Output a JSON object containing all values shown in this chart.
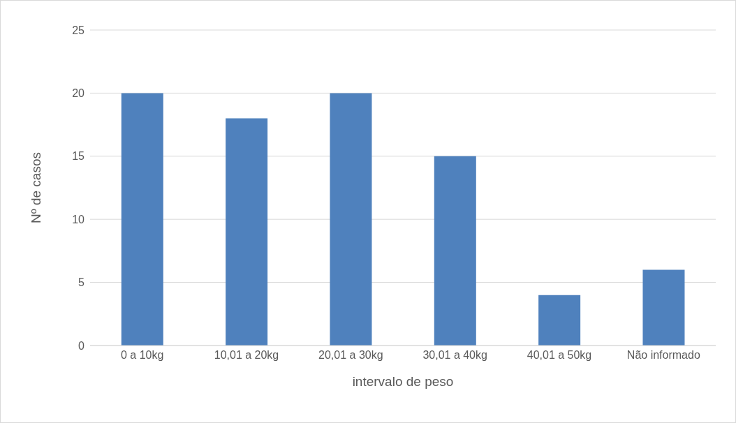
{
  "chart_data": {
    "type": "bar",
    "xlabel": "intervalo de peso",
    "ylabel": "Nº de casos",
    "categories": [
      "0 a 10kg",
      "10,01 a 20kg",
      "20,01 a 30kg",
      "30,01 a 40kg",
      "40,01 a 50kg",
      "Não informado"
    ],
    "values": [
      20,
      18,
      20,
      15,
      4,
      6
    ],
    "color": "#4f81bd",
    "ylim": [
      0,
      25
    ],
    "yticks": [
      0,
      5,
      10,
      15,
      20,
      25
    ],
    "grid": "y",
    "legend": false
  }
}
